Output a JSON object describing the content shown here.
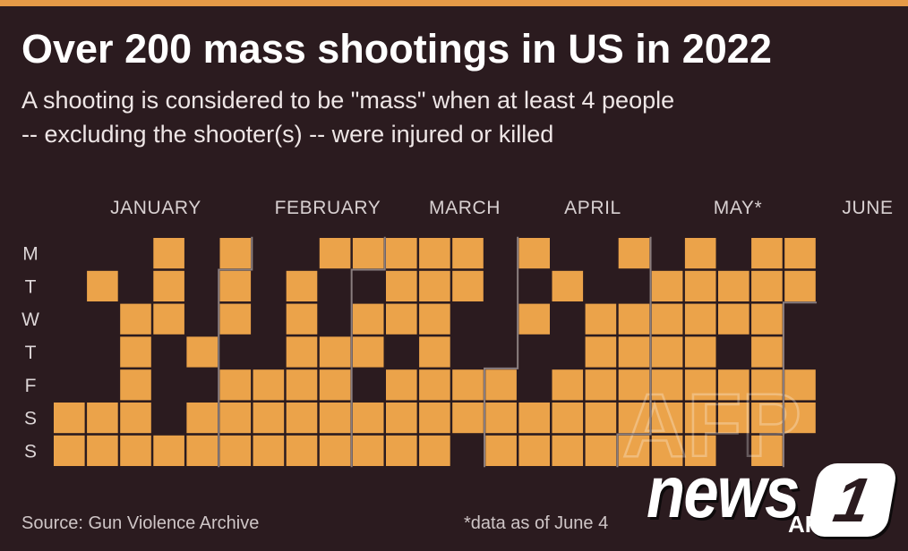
{
  "colors": {
    "background": "#2b1b1f",
    "accent_bar": "#e59a47",
    "day_cell": "#eba34a",
    "month_divider": "#8a7e7f"
  },
  "logo": {
    "word": "news",
    "numeral": "1",
    "credit": "AFP"
  },
  "watermark": "AFP",
  "chart_data": {
    "type": "heatmap",
    "title": "Over 200 mass shootings in US in 2022",
    "subtitle": [
      "A shooting is considered to be \"mass\" when at least 4 people",
      "-- excluding the shooter(s) -- were injured or killed"
    ],
    "month_labels": [
      "JANUARY",
      "FEBRUARY",
      "MARCH",
      "APRIL",
      "MAY*",
      "JUNE"
    ],
    "row_labels": [
      "M",
      "T",
      "W",
      "T",
      "F",
      "S",
      "S"
    ],
    "days": [
      [
        null,
        0,
        0,
        1,
        0,
        1,
        0,
        0,
        1,
        1,
        1,
        1,
        1,
        0,
        1,
        0,
        0,
        1,
        0,
        1,
        0,
        1,
        1
      ],
      [
        null,
        1,
        0,
        1,
        0,
        1,
        0,
        1,
        0,
        0,
        1,
        1,
        1,
        0,
        0,
        1,
        0,
        0,
        1,
        1,
        1,
        1,
        1
      ],
      [
        null,
        0,
        1,
        1,
        0,
        1,
        0,
        1,
        0,
        1,
        1,
        1,
        0,
        0,
        1,
        0,
        1,
        1,
        1,
        1,
        1,
        1,
        0
      ],
      [
        null,
        0,
        1,
        0,
        1,
        0,
        0,
        1,
        1,
        1,
        0,
        1,
        0,
        0,
        0,
        0,
        1,
        1,
        1,
        1,
        0,
        1,
        0
      ],
      [
        null,
        0,
        1,
        0,
        0,
        1,
        1,
        1,
        1,
        0,
        1,
        1,
        1,
        1,
        0,
        1,
        1,
        1,
        1,
        1,
        1,
        1,
        1
      ],
      [
        1,
        1,
        1,
        0,
        1,
        1,
        1,
        1,
        1,
        1,
        1,
        1,
        1,
        1,
        1,
        1,
        1,
        1,
        1,
        1,
        1,
        1,
        1
      ],
      [
        1,
        1,
        1,
        1,
        1,
        1,
        1,
        1,
        1,
        1,
        1,
        1,
        0,
        1,
        1,
        1,
        1,
        1,
        1,
        1,
        0,
        1,
        null
      ]
    ],
    "source": "Source: Gun Violence Archive",
    "footnote": "*data as of June 4"
  }
}
